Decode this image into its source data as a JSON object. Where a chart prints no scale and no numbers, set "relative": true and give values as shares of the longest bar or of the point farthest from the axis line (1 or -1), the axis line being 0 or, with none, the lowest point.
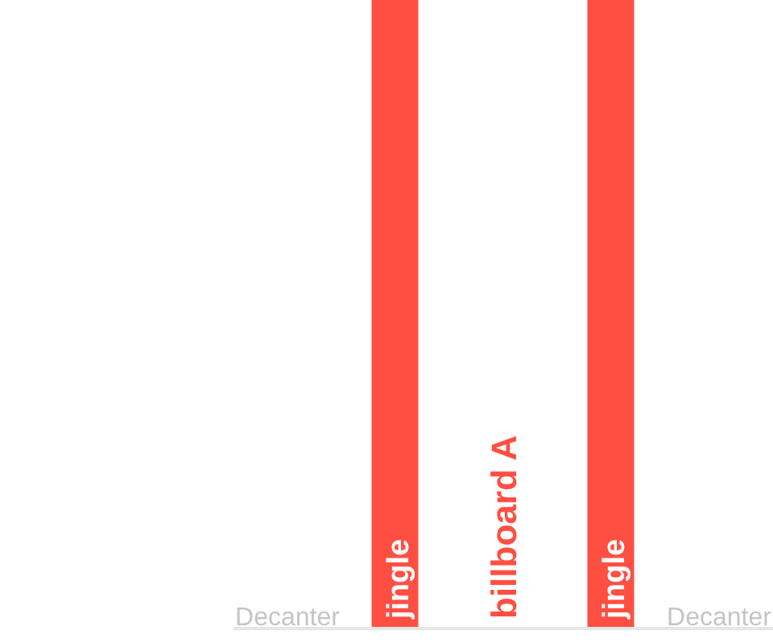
{
  "chart_data": {
    "type": "bar",
    "relative": true,
    "categories": [
      "Decanter",
      "jingle",
      "billboard A",
      "jingle",
      "Decanter"
    ],
    "values": [
      0,
      1,
      0,
      1,
      0
    ],
    "color": "#ff4f43"
  }
}
